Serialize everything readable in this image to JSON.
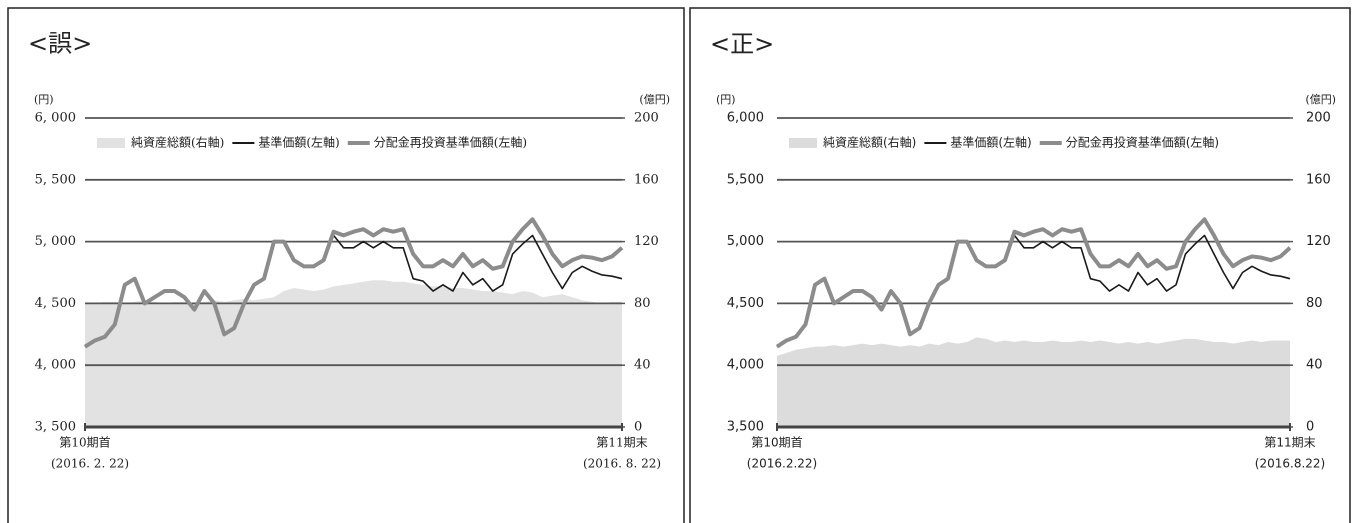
{
  "chart_data": [
    {
      "type": "line",
      "title": "<誤>",
      "y_unit": "(円)",
      "y2_unit": "(億円)",
      "categories": [
        "第10期首",
        null,
        null,
        null,
        null,
        null,
        null,
        null,
        null,
        null,
        null,
        null,
        null,
        null,
        null,
        null,
        null,
        null,
        null,
        null,
        null,
        null,
        null,
        null,
        null,
        null,
        null,
        null,
        null,
        null,
        null,
        null,
        null,
        null,
        null,
        null,
        null,
        null,
        null,
        null,
        null,
        null,
        null,
        null,
        null,
        null,
        null,
        null,
        null,
        null,
        null,
        null,
        null,
        null,
        "第11期末"
      ],
      "category_dates": [
        "(2016. 2. 22)",
        null,
        null,
        null,
        null,
        null,
        null,
        null,
        null,
        null,
        null,
        null,
        null,
        null,
        null,
        null,
        null,
        null,
        null,
        null,
        null,
        null,
        null,
        null,
        null,
        null,
        null,
        null,
        null,
        null,
        null,
        null,
        null,
        null,
        null,
        null,
        null,
        null,
        null,
        null,
        null,
        null,
        null,
        null,
        null,
        null,
        null,
        null,
        null,
        null,
        null,
        null,
        null,
        null,
        "(2016. 8. 22)"
      ],
      "ylim": [
        3500,
        6000
      ],
      "yticks": [
        {
          "value": 3500,
          "label": "3, 500"
        },
        {
          "value": 4000,
          "label": "4, 000"
        },
        {
          "value": 4500,
          "label": "4, 500"
        },
        {
          "value": 5000,
          "label": "5, 000"
        },
        {
          "value": 5500,
          "label": "5, 500"
        },
        {
          "value": 6000,
          "label": "6, 000"
        }
      ],
      "y2lim": [
        0,
        200
      ],
      "y2ticks": [
        0,
        40,
        80,
        120,
        160,
        200
      ],
      "grid": true,
      "legend": "top",
      "series": [
        {
          "name": "純資産総額(右軸)",
          "type": "area",
          "axis": "y2",
          "color": "#e2e2e2",
          "values": [
            80,
            80,
            81,
            81,
            80,
            81,
            82,
            81,
            80,
            81,
            81,
            80,
            81,
            82,
            81,
            82,
            83,
            82,
            83,
            84,
            88,
            90,
            89,
            88,
            89,
            91,
            92,
            93,
            94,
            95,
            95,
            94,
            94,
            93,
            92,
            91,
            91,
            90,
            90,
            89,
            88,
            88,
            87,
            86,
            88,
            87,
            84,
            85,
            86,
            84,
            82,
            81,
            80,
            81,
            81
          ]
        },
        {
          "name": "基準価額(左軸)",
          "type": "line",
          "color": "#1a1a1a",
          "values": [
            4150,
            4200,
            4230,
            4330,
            4650,
            4700,
            4500,
            4550,
            4600,
            4600,
            4550,
            4450,
            4600,
            4500,
            4250,
            4300,
            4500,
            4650,
            4700,
            5000,
            5000,
            4850,
            4800,
            4800,
            4850,
            5050,
            4950,
            4950,
            5000,
            4950,
            5000,
            4950,
            4950,
            4700,
            4680,
            4600,
            4650,
            4600,
            4750,
            4650,
            4700,
            4600,
            4650,
            4900,
            4980,
            5050,
            4900,
            4750,
            4620,
            4750,
            4800,
            4760,
            4730,
            4720,
            4700
          ]
        },
        {
          "name": "分配金再投資基準価額(左軸)",
          "type": "line",
          "color": "#8c8c8c",
          "values": [
            4150,
            4200,
            4230,
            4330,
            4650,
            4700,
            4500,
            4550,
            4600,
            4600,
            4550,
            4450,
            4600,
            4500,
            4250,
            4300,
            4500,
            4650,
            4700,
            5000,
            5000,
            4850,
            4800,
            4800,
            4850,
            5080,
            5050,
            5080,
            5100,
            5050,
            5100,
            5080,
            5100,
            4900,
            4800,
            4800,
            4850,
            4800,
            4900,
            4800,
            4850,
            4780,
            4800,
            5000,
            5100,
            5180,
            5050,
            4900,
            4800,
            4850,
            4880,
            4870,
            4850,
            4880,
            4950
          ]
        }
      ]
    },
    {
      "type": "line",
      "title": "<正>",
      "y_unit": "(円)",
      "y2_unit": "(億円)",
      "categories": [
        "第10期首",
        null,
        null,
        null,
        null,
        null,
        null,
        null,
        null,
        null,
        null,
        null,
        null,
        null,
        null,
        null,
        null,
        null,
        null,
        null,
        null,
        null,
        null,
        null,
        null,
        null,
        null,
        null,
        null,
        null,
        null,
        null,
        null,
        null,
        null,
        null,
        null,
        null,
        null,
        null,
        null,
        null,
        null,
        null,
        null,
        null,
        null,
        null,
        null,
        null,
        null,
        null,
        null,
        null,
        "第11期末"
      ],
      "category_dates": [
        "(2016.2.22)",
        null,
        null,
        null,
        null,
        null,
        null,
        null,
        null,
        null,
        null,
        null,
        null,
        null,
        null,
        null,
        null,
        null,
        null,
        null,
        null,
        null,
        null,
        null,
        null,
        null,
        null,
        null,
        null,
        null,
        null,
        null,
        null,
        null,
        null,
        null,
        null,
        null,
        null,
        null,
        null,
        null,
        null,
        null,
        null,
        null,
        null,
        null,
        null,
        null,
        null,
        null,
        null,
        null,
        "(2016.8.22)"
      ],
      "ylim": [
        3500,
        6000
      ],
      "yticks": [
        {
          "value": 3500,
          "label": "3,500"
        },
        {
          "value": 4000,
          "label": "4,000"
        },
        {
          "value": 4500,
          "label": "4,500"
        },
        {
          "value": 5000,
          "label": "5,000"
        },
        {
          "value": 5500,
          "label": "5,500"
        },
        {
          "value": 6000,
          "label": "6,000"
        }
      ],
      "y2lim": [
        0,
        200
      ],
      "y2ticks": [
        0,
        40,
        80,
        120,
        160,
        200
      ],
      "grid": true,
      "legend": "top",
      "series": [
        {
          "name": "純資産総額(右軸)",
          "type": "area",
          "axis": "y2",
          "color": "#dcdcdc",
          "values": [
            46,
            48,
            50,
            51,
            52,
            52,
            53,
            52,
            53,
            54,
            53,
            54,
            53,
            52,
            53,
            52,
            54,
            53,
            55,
            54,
            55,
            58,
            57,
            55,
            56,
            55,
            56,
            55,
            55,
            56,
            55,
            55,
            56,
            55,
            56,
            55,
            54,
            55,
            54,
            55,
            54,
            55,
            56,
            57,
            57,
            56,
            55,
            55,
            54,
            55,
            56,
            55,
            56,
            56,
            56
          ]
        },
        {
          "name": "基準価額(左軸)",
          "type": "line",
          "color": "#1a1a1a",
          "values": [
            4150,
            4200,
            4230,
            4330,
            4650,
            4700,
            4500,
            4550,
            4600,
            4600,
            4550,
            4450,
            4600,
            4500,
            4250,
            4300,
            4500,
            4650,
            4700,
            5000,
            5000,
            4850,
            4800,
            4800,
            4850,
            5050,
            4950,
            4950,
            5000,
            4950,
            5000,
            4950,
            4950,
            4700,
            4680,
            4600,
            4650,
            4600,
            4750,
            4650,
            4700,
            4600,
            4650,
            4900,
            4980,
            5050,
            4900,
            4750,
            4620,
            4750,
            4800,
            4760,
            4730,
            4720,
            4700
          ]
        },
        {
          "name": "分配金再投資基準価額(左軸)",
          "type": "line",
          "color": "#8c8c8c",
          "values": [
            4150,
            4200,
            4230,
            4330,
            4650,
            4700,
            4500,
            4550,
            4600,
            4600,
            4550,
            4450,
            4600,
            4500,
            4250,
            4300,
            4500,
            4650,
            4700,
            5000,
            5000,
            4850,
            4800,
            4800,
            4850,
            5080,
            5050,
            5080,
            5100,
            5050,
            5100,
            5080,
            5100,
            4900,
            4800,
            4800,
            4850,
            4800,
            4900,
            4800,
            4850,
            4780,
            4800,
            5000,
            5100,
            5180,
            5050,
            4900,
            4800,
            4850,
            4880,
            4870,
            4850,
            4880,
            4950
          ]
        }
      ]
    }
  ]
}
